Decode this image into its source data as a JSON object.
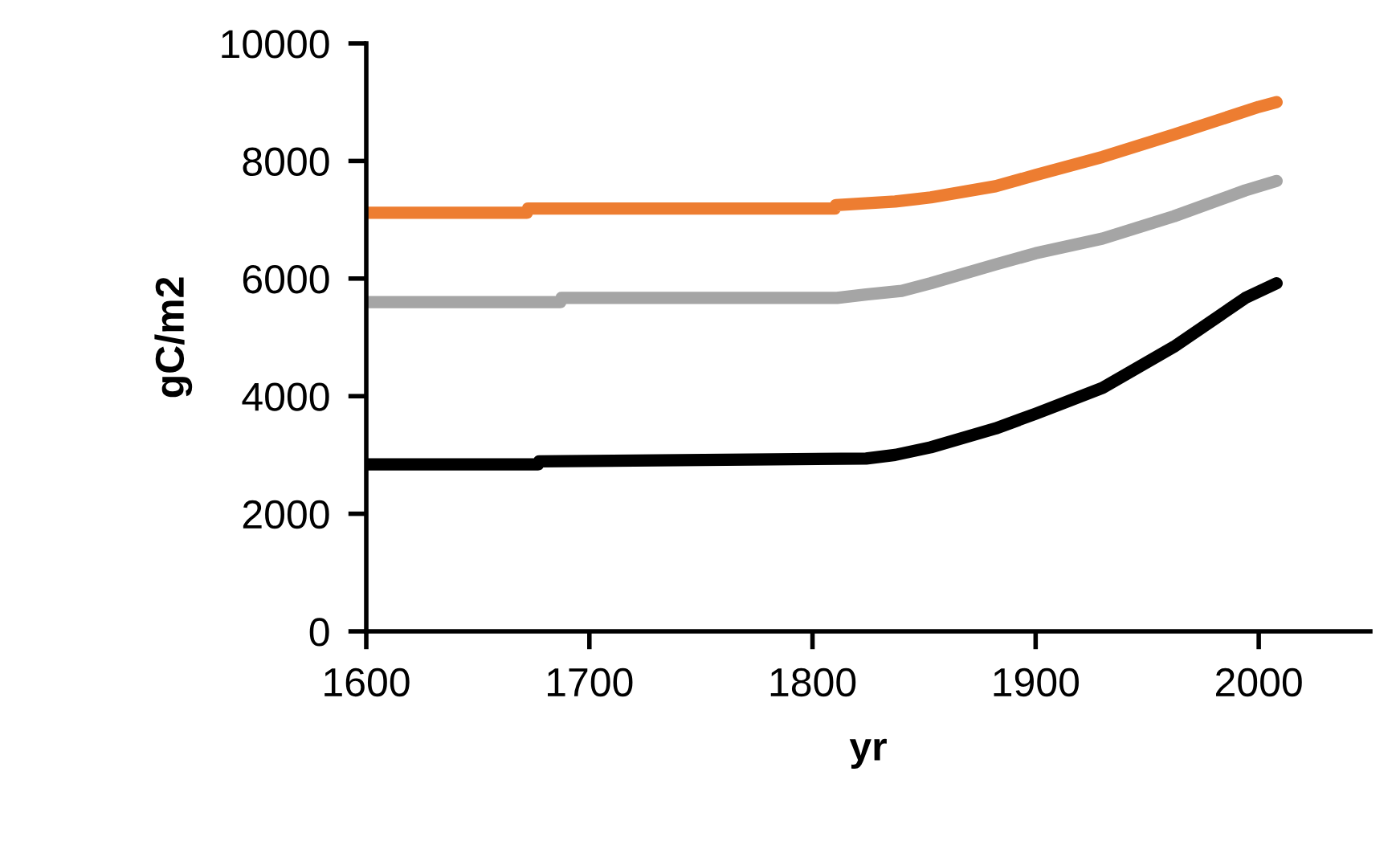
{
  "chart_data": {
    "type": "line",
    "xlabel": "yr",
    "ylabel": "gC/m2",
    "xlim": [
      1600,
      2050
    ],
    "xticks": [
      1600,
      1700,
      1800,
      1900,
      2000
    ],
    "ylim": [
      0,
      10000
    ],
    "yticks": [
      0,
      2000,
      4000,
      6000,
      8000,
      10000
    ],
    "grid": false,
    "legend": false,
    "marker": "none",
    "line_style": "solid",
    "series": [
      {
        "color": "#ed7d31",
        "x": [
          1600,
          1672,
          1672.5,
          1810,
          1810.5,
          1837,
          1853,
          1882,
          1900,
          1930,
          1962,
          2000,
          2008
        ],
        "values": [
          7120,
          7120,
          7190,
          7190,
          7250,
          7310,
          7380,
          7570,
          7760,
          8070,
          8450,
          8920,
          9000
        ]
      },
      {
        "color": "#a5a5a5",
        "x": [
          1600,
          1687,
          1687.5,
          1811,
          1824,
          1840,
          1853,
          1882,
          1900,
          1930,
          1962,
          1994,
          2008
        ],
        "values": [
          5600,
          5600,
          5670,
          5670,
          5730,
          5790,
          5920,
          6240,
          6430,
          6680,
          7060,
          7500,
          7660
        ]
      },
      {
        "color": "#000000",
        "x": [
          1600,
          1677,
          1677.5,
          1824,
          1837,
          1853,
          1882,
          1900,
          1930,
          1962,
          1994,
          2008
        ],
        "values": [
          2840,
          2840,
          2890,
          2940,
          3000,
          3130,
          3450,
          3700,
          4140,
          4840,
          5670,
          5920
        ]
      }
    ]
  }
}
